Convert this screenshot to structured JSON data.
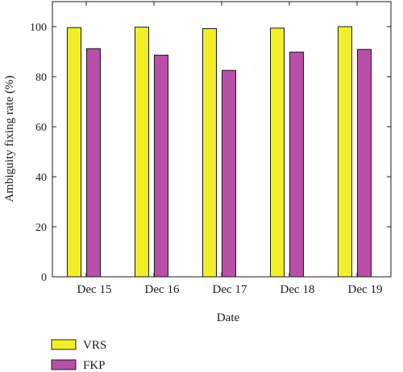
{
  "chart_data": {
    "type": "bar",
    "categories": [
      "Dec 15",
      "Dec 16",
      "Dec 17",
      "Dec 18",
      "Dec 19"
    ],
    "series": [
      {
        "name": "VRS",
        "color": "#f2ee2a",
        "values": [
          99.6,
          99.8,
          99.2,
          99.4,
          100.0
        ]
      },
      {
        "name": "FKP",
        "color": "#b94fa8",
        "values": [
          91.2,
          88.6,
          82.5,
          89.8,
          90.9
        ]
      }
    ],
    "xlabel": "Date",
    "ylabel": "Ambiguity fixing rate (%)",
    "ylim": [
      0,
      110
    ],
    "yticks": [
      "0",
      "20",
      "40",
      "60",
      "80",
      "100"
    ],
    "grid": false,
    "legend_position": "bottom-left"
  }
}
